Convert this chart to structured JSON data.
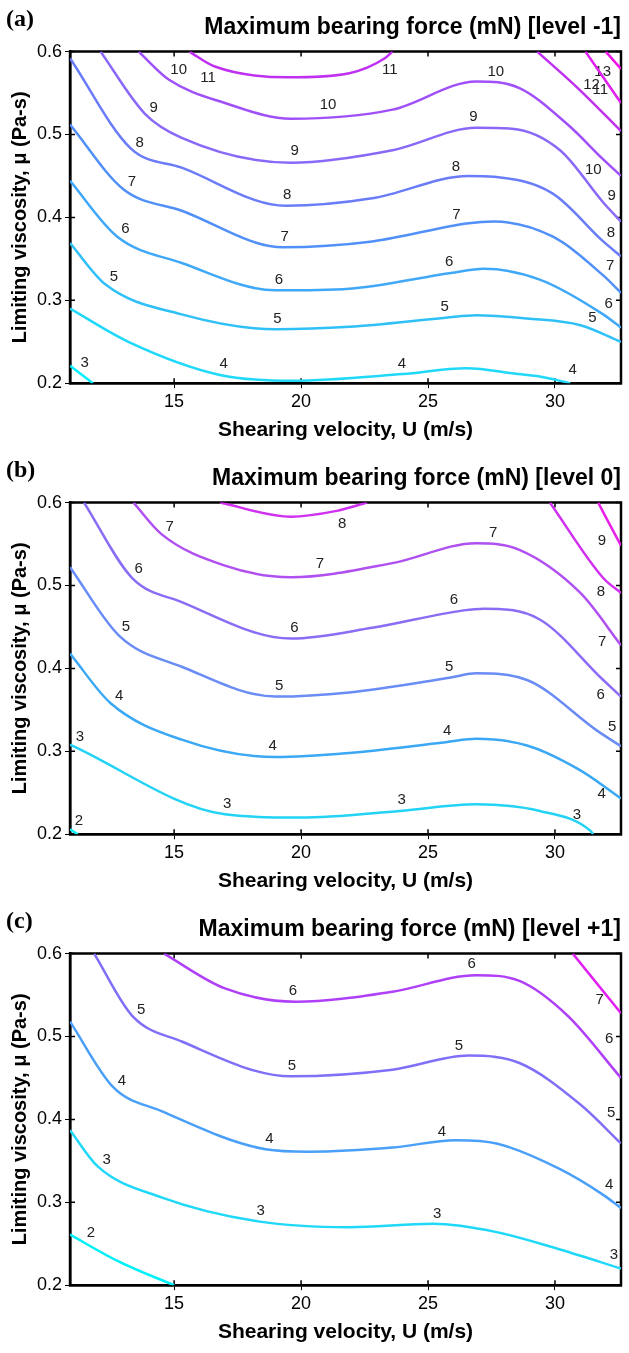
{
  "chart_data": [
    {
      "type": "line",
      "title": "Maximum bearing force (mN) [level -1]",
      "xlabel": "Shearing velocity, U (m/s)",
      "ylabel": "Limiting viscosity, μ (Pa-s)",
      "xlim": [
        10.9,
        32.6
      ],
      "ylim": [
        0.2,
        0.6
      ],
      "xticks": [
        15,
        20,
        25,
        30
      ],
      "yticks": [
        0.2,
        0.3,
        0.4,
        0.5,
        0.6
      ],
      "grid": false,
      "legend": false,
      "marker": "none",
      "line_style": "solid",
      "series": [
        {
          "color": "#00f0ff",
          "x": [
            10.9,
            11.8
          ],
          "values": [
            0.221,
            0.2
          ]
        },
        {
          "color": "#20d8f8",
          "x": [
            10.9,
            13.26,
            16.8,
            19.67,
            24.0,
            26.5,
            28.55,
            29.4,
            30.6
          ],
          "values": [
            0.29,
            0.249,
            0.21,
            0.203,
            0.211,
            0.218,
            0.211,
            0.208,
            0.2
          ]
        },
        {
          "color": "#30c0f8",
          "x": [
            10.9,
            12.3,
            15.3,
            19,
            21.9,
            25.7,
            26.9,
            28.9,
            31,
            32.6
          ],
          "values": [
            0.369,
            0.319,
            0.283,
            0.265,
            0.268,
            0.279,
            0.282,
            0.278,
            0.27,
            0.25
          ]
        },
        {
          "color": "#40a8f8",
          "x": [
            10.9,
            12.75,
            15.3,
            19,
            21.9,
            25.9,
            27.2,
            29.4,
            31.9,
            32.6
          ],
          "values": [
            0.444,
            0.377,
            0.345,
            0.312,
            0.314,
            0.333,
            0.338,
            0.325,
            0.283,
            0.267
          ]
        },
        {
          "color": "#5090f8",
          "x": [
            10.9,
            13,
            15.3,
            19.3,
            22.8,
            26.6,
            27.6,
            29.9,
            31.9,
            32.6
          ],
          "values": [
            0.512,
            0.434,
            0.408,
            0.364,
            0.371,
            0.393,
            0.395,
            0.377,
            0.33,
            0.309
          ]
        },
        {
          "color": "#6a7cf8",
          "x": [
            10.9,
            13.3,
            15.3,
            19.4,
            22.8,
            26.6,
            27.6,
            29.9,
            31.9,
            32.6
          ],
          "values": [
            0.592,
            0.483,
            0.46,
            0.414,
            0.423,
            0.45,
            0.449,
            0.429,
            0.371,
            0.353
          ]
        },
        {
          "color": "#8a68f8",
          "x": [
            12.1,
            13.85,
            15.3,
            19.6,
            23.6,
            26.9,
            28.3,
            30.2,
            31.9,
            32.6
          ],
          "values": [
            0.6,
            0.525,
            0.496,
            0.466,
            0.481,
            0.508,
            0.507,
            0.481,
            0.418,
            0.395
          ]
        },
        {
          "color": "#a050f8",
          "x": [
            13.6,
            14.8,
            17,
            19.6,
            23.6,
            26.9,
            28.6,
            30.5,
            31.9,
            32.6
          ],
          "values": [
            0.6,
            0.566,
            0.538,
            0.519,
            0.53,
            0.564,
            0.556,
            0.512,
            0.47,
            0.45
          ]
        },
        {
          "color": "#c030f0",
          "x": [
            15.6,
            16.6,
            19.5,
            21.9,
            23.3,
            23.6
          ],
          "values": [
            0.6,
            0.582,
            0.569,
            0.574,
            0.592,
            0.6
          ]
        },
        {
          "color": "#c030f0",
          "x": [
            29.3,
            31,
            32.6
          ],
          "values": [
            0.6,
            0.553,
            0.504
          ]
        },
        {
          "color": "#e020f0",
          "x": [
            31.2,
            32.6
          ],
          "values": [
            0.6,
            0.538
          ]
        },
        {
          "color": "#f010e8",
          "x": [
            32,
            32.6
          ],
          "values": [
            0.6,
            0.579
          ]
        }
      ],
      "annotations": [
        "(a)",
        {
          "text": "3",
          "x": 11.2,
          "y": 0.214
        },
        {
          "text": "4",
          "x": 16.8,
          "y": 0.21
        },
        {
          "text": "4",
          "x": 24.0,
          "y": 0.211
        },
        {
          "text": "4",
          "x": 30.6,
          "y": 0.203
        },
        {
          "text": "5",
          "x": 12.3,
          "y": 0.319
        },
        {
          "text": "5",
          "x": 19,
          "y": 0.265
        },
        {
          "text": "5",
          "x": 25.7,
          "y": 0.279
        },
        {
          "text": "5",
          "x": 31.3,
          "y": 0.266
        },
        {
          "text": "6",
          "x": 12.75,
          "y": 0.377
        },
        {
          "text": "6",
          "x": 19,
          "y": 0.312
        },
        {
          "text": "6",
          "x": 25.9,
          "y": 0.333
        },
        {
          "text": "6",
          "x": 31.9,
          "y": 0.283
        },
        {
          "text": "7",
          "x": 13,
          "y": 0.434
        },
        {
          "text": "7",
          "x": 19.2,
          "y": 0.364
        },
        {
          "text": "7",
          "x": 26.2,
          "y": 0.39
        },
        {
          "text": "7",
          "x": 31.9,
          "y": 0.33
        },
        {
          "text": "8",
          "x": 13.3,
          "y": 0.483
        },
        {
          "text": "8",
          "x": 19.3,
          "y": 0.414
        },
        {
          "text": "8",
          "x": 26.2,
          "y": 0.448
        },
        {
          "text": "8",
          "x": 31.9,
          "y": 0.371
        },
        {
          "text": "9",
          "x": 13.85,
          "y": 0.525
        },
        {
          "text": "9",
          "x": 19.8,
          "y": 0.467
        },
        {
          "text": "9",
          "x": 26.9,
          "y": 0.508
        },
        {
          "text": "9",
          "x": 31.9,
          "y": 0.418
        },
        {
          "text": "10",
          "x": 14.8,
          "y": 0.566
        },
        {
          "text": "10",
          "x": 21.1,
          "y": 0.522
        },
        {
          "text": "10",
          "x": 27.6,
          "y": 0.562
        },
        {
          "text": "10",
          "x": 31.9,
          "y": 0.47
        },
        {
          "text": "11",
          "x": 16.6,
          "y": 0.582
        },
        {
          "text": "11",
          "x": 23.3,
          "y": 0.592
        },
        {
          "text": "11",
          "x": 31.4,
          "y": 0.542
        },
        {
          "text": "12",
          "x": 31.9,
          "y": 0.57
        },
        {
          "text": "13",
          "x": 32.3,
          "y": 0.587
        }
      ]
    },
    {
      "type": "line",
      "title": "Maximum bearing force (mN) [level 0]",
      "xlabel": "Shearing velocity, U (m/s)",
      "ylabel": "Limiting viscosity, μ (Pa-s)",
      "xlim": [
        10.9,
        32.6
      ],
      "ylim": [
        0.2,
        0.6
      ],
      "xticks": [
        15,
        20,
        25,
        30
      ],
      "yticks": [
        0.2,
        0.3,
        0.4,
        0.5,
        0.6
      ],
      "grid": false,
      "legend": false,
      "marker": "none",
      "line_style": "solid",
      "series": [
        {
          "color": "#10f0f8",
          "x": [
            10.9,
            11.2
          ],
          "values": [
            0.206,
            0.2
          ]
        },
        {
          "color": "#22d3f5",
          "x": [
            10.9,
            17,
            19.96,
            23.9,
            26.9,
            29.4,
            31.4,
            31.5
          ],
          "values": [
            0.308,
            0.224,
            0.22,
            0.228,
            0.236,
            0.228,
            0.204,
            0.2
          ]
        },
        {
          "color": "#3aa8f5",
          "x": [
            10.9,
            12.5,
            15.3,
            19,
            21.9,
            25.7,
            26.9,
            28.9,
            31,
            32.6
          ],
          "values": [
            0.418,
            0.358,
            0.314,
            0.293,
            0.298,
            0.311,
            0.315,
            0.307,
            0.277,
            0.243
          ]
        },
        {
          "color": "#6a8cf5",
          "x": [
            10.9,
            12.85,
            15.3,
            19,
            21.9,
            25.9,
            26.9,
            28.9,
            31.7,
            32.6
          ],
          "values": [
            0.522,
            0.439,
            0.402,
            0.366,
            0.371,
            0.389,
            0.394,
            0.386,
            0.324,
            0.306
          ]
        },
        {
          "color": "#8a6cf5",
          "x": [
            11.45,
            13.35,
            15.3,
            19.6,
            22.8,
            26.4,
            27.2,
            29.4,
            31.9,
            32.6
          ],
          "values": [
            0.6,
            0.509,
            0.48,
            0.436,
            0.449,
            0.47,
            0.472,
            0.459,
            0.386,
            0.366
          ]
        },
        {
          "color": "#b050f0",
          "x": [
            13.4,
            14.5,
            17,
            19.6,
            23.6,
            26.9,
            28.6,
            31,
            32.6
          ],
          "values": [
            0.6,
            0.562,
            0.524,
            0.51,
            0.527,
            0.551,
            0.543,
            0.491,
            0.428
          ]
        },
        {
          "color": "#d030f0",
          "x": [
            16.8,
            19.6,
            21.4,
            22.6
          ],
          "values": [
            0.6,
            0.583,
            0.59,
            0.6
          ]
        },
        {
          "color": "#d030f0",
          "x": [
            29.8,
            31.9,
            32.6
          ],
          "values": [
            0.6,
            0.509,
            0.491
          ]
        },
        {
          "color": "#e820e8",
          "x": [
            31.7,
            32.6
          ],
          "values": [
            0.6,
            0.548
          ]
        }
      ],
      "annotations": [
        "(b)",
        {
          "text": "2",
          "x": 11.0,
          "y": 0.204
        },
        {
          "text": "3",
          "x": 11.1,
          "y": 0.305
        },
        {
          "text": "3",
          "x": 16.9,
          "y": 0.224
        },
        {
          "text": "3",
          "x": 24,
          "y": 0.229
        },
        {
          "text": "3",
          "x": 30.7,
          "y": 0.21
        },
        {
          "text": "4",
          "x": 12.5,
          "y": 0.358
        },
        {
          "text": "4",
          "x": 18.8,
          "y": 0.293
        },
        {
          "text": "4",
          "x": 25.8,
          "y": 0.312
        },
        {
          "text": "4",
          "x": 32.1,
          "y": 0.26
        },
        {
          "text": "5",
          "x": 12.9,
          "y": 0.437
        },
        {
          "text": "5",
          "x": 19.0,
          "y": 0.366
        },
        {
          "text": "5",
          "x": 25.9,
          "y": 0.389
        },
        {
          "text": "5",
          "x": 32.0,
          "y": 0.318
        },
        {
          "text": "6",
          "x": 13.4,
          "y": 0.507
        },
        {
          "text": "6",
          "x": 19.6,
          "y": 0.436
        },
        {
          "text": "6",
          "x": 26.1,
          "y": 0.47
        },
        {
          "text": "6",
          "x": 32.1,
          "y": 0.378
        },
        {
          "text": "7",
          "x": 14.5,
          "y": 0.562
        },
        {
          "text": "7",
          "x": 20.8,
          "y": 0.513
        },
        {
          "text": "7",
          "x": 27.5,
          "y": 0.55
        },
        {
          "text": "7",
          "x": 32.2,
          "y": 0.44
        },
        {
          "text": "8",
          "x": 21.5,
          "y": 0.587
        },
        {
          "text": "8",
          "x": 32.1,
          "y": 0.503
        },
        {
          "text": "9",
          "x": 32.2,
          "y": 0.56
        }
      ]
    },
    {
      "type": "line",
      "title": "Maximum bearing force (mN) [level +1]",
      "xlabel": "Shearing velocity, U (m/s)",
      "ylabel": "Limiting viscosity, μ (Pa-s)",
      "xlim": [
        10.9,
        32.6
      ],
      "ylim": [
        0.2,
        0.6
      ],
      "xticks": [
        15,
        20,
        25,
        30
      ],
      "yticks": [
        0.2,
        0.3,
        0.4,
        0.5,
        0.6
      ],
      "grid": false,
      "legend": false,
      "marker": "none",
      "line_style": "solid",
      "series": [
        {
          "color": "#00f0f8",
          "x": [
            10.9,
            12.85,
            15
          ],
          "values": [
            0.261,
            0.228,
            0.2
          ]
        },
        {
          "color": "#20d8f8",
          "x": [
            10.9,
            12,
            14.5,
            18.3,
            21.9,
            25.2,
            27.7,
            30.2,
            32.6
          ],
          "values": [
            0.387,
            0.343,
            0.306,
            0.277,
            0.27,
            0.274,
            0.264,
            0.243,
            0.22
          ]
        },
        {
          "color": "#4aa0f8",
          "x": [
            10.9,
            12.6,
            14.5,
            18.6,
            20.3,
            23.6,
            26.1,
            27.7,
            30.2,
            31.9,
            32.6
          ],
          "values": [
            0.518,
            0.439,
            0.41,
            0.364,
            0.361,
            0.366,
            0.375,
            0.371,
            0.34,
            0.309,
            0.293
          ]
        },
        {
          "color": "#8070f8",
          "x": [
            11.85,
            13.35,
            15.3,
            19.6,
            23.6,
            26.6,
            28.6,
            31,
            32.6
          ],
          "values": [
            0.6,
            0.525,
            0.494,
            0.452,
            0.46,
            0.477,
            0.468,
            0.418,
            0.371
          ]
        },
        {
          "color": "#b040f8",
          "x": [
            14.6,
            17,
            19.8,
            23.6,
            26.9,
            28.6,
            30.5,
            32.6
          ],
          "values": [
            0.6,
            0.558,
            0.542,
            0.554,
            0.574,
            0.567,
            0.525,
            0.45
          ]
        },
        {
          "color": "#e020f0",
          "x": [
            30.7,
            32.6
          ],
          "values": [
            0.6,
            0.528
          ]
        }
      ],
      "annotations": [
        "(c)",
        {
          "text": "2",
          "x": 11.5,
          "y": 0.251
        },
        {
          "text": "3",
          "x": 12.0,
          "y": 0.343
        },
        {
          "text": "3",
          "x": 18.3,
          "y": 0.277
        },
        {
          "text": "3",
          "x": 25.3,
          "y": 0.273
        },
        {
          "text": "3",
          "x": 32.2,
          "y": 0.224
        },
        {
          "text": "4",
          "x": 12.6,
          "y": 0.439
        },
        {
          "text": "4",
          "x": 18.6,
          "y": 0.364
        },
        {
          "text": "4",
          "x": 25.6,
          "y": 0.372
        },
        {
          "text": "4",
          "x": 31.9,
          "y": 0.309
        },
        {
          "text": "5",
          "x": 13.35,
          "y": 0.525
        },
        {
          "text": "5",
          "x": 19.5,
          "y": 0.452
        },
        {
          "text": "5",
          "x": 26.3,
          "y": 0.476
        },
        {
          "text": "5",
          "x": 31.9,
          "y": 0.398
        },
        {
          "text": "6",
          "x": 19.6,
          "y": 0.542
        },
        {
          "text": "6",
          "x": 26.8,
          "y": 0.574
        },
        {
          "text": "6",
          "x": 31.8,
          "y": 0.488
        },
        {
          "text": "7",
          "x": 32.1,
          "y": 0.552
        }
      ]
    }
  ]
}
